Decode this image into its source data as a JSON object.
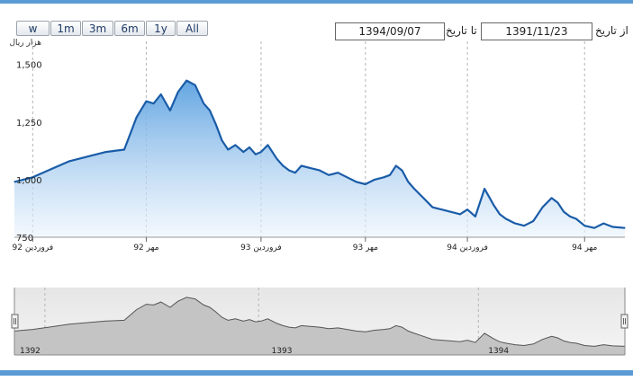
{
  "toolbar": {
    "range_buttons": [
      "w",
      "1m",
      "3m",
      "6m",
      "1y",
      "All"
    ],
    "from_label": "از تاریخ",
    "from_value": "1391/11/23",
    "to_label": "تا تاریخ",
    "to_value": "1394/09/07"
  },
  "colors": {
    "accent": "#5b9bd5",
    "line": "#1a5ca8",
    "navigator_fill": "#c4c4c4"
  },
  "chart_data": {
    "type": "area",
    "ylabel": "هزار ریال",
    "ylim": [
      750,
      1600
    ],
    "yticks": [
      {
        "label": "1,500",
        "value": 1500
      },
      {
        "label": "1,250",
        "value": 1250
      },
      {
        "label": "1,000",
        "value": 1000
      },
      {
        "label": "750",
        "value": 750
      }
    ],
    "xlim": [
      0,
      1000
    ],
    "xticks": [
      {
        "label": "فروردین 92",
        "x": 30
      },
      {
        "label": "مهر 92",
        "x": 216
      },
      {
        "label": "فروردین 93",
        "x": 404
      },
      {
        "label": "مهر 93",
        "x": 575
      },
      {
        "label": "فروردین 94",
        "x": 742
      },
      {
        "label": "مهر 94",
        "x": 934
      }
    ],
    "series": [
      {
        "x": [
          0,
          30,
          60,
          90,
          120,
          150,
          180,
          200,
          216,
          228,
          240,
          255,
          268,
          282,
          296,
          310,
          320,
          330,
          340,
          350,
          362,
          375,
          385,
          395,
          404,
          415,
          430,
          440,
          450,
          460,
          470,
          485,
          500,
          515,
          530,
          545,
          560,
          575,
          590,
          605,
          615,
          625,
          635,
          645,
          655,
          670,
          685,
          700,
          715,
          730,
          742,
          755,
          770,
          785,
          795,
          805,
          820,
          835,
          850,
          865,
          880,
          890,
          900,
          910,
          920,
          934,
          950,
          965,
          980,
          1000
        ],
        "y": [
          990,
          1010,
          1045,
          1080,
          1100,
          1120,
          1130,
          1270,
          1340,
          1330,
          1370,
          1300,
          1380,
          1430,
          1410,
          1330,
          1300,
          1240,
          1170,
          1130,
          1150,
          1120,
          1140,
          1110,
          1120,
          1150,
          1090,
          1060,
          1040,
          1030,
          1060,
          1050,
          1040,
          1020,
          1030,
          1010,
          990,
          980,
          1000,
          1010,
          1020,
          1060,
          1040,
          990,
          960,
          920,
          880,
          870,
          860,
          850,
          870,
          840,
          960,
          890,
          850,
          830,
          810,
          800,
          820,
          880,
          920,
          900,
          860,
          840,
          830,
          800,
          790,
          810,
          795,
          790
        ]
      }
    ]
  },
  "navigator": {
    "labels": [
      {
        "label": "1392",
        "x": 0
      },
      {
        "label": "1393",
        "x": 430
      },
      {
        "label": "1394",
        "x": 785
      }
    ]
  }
}
